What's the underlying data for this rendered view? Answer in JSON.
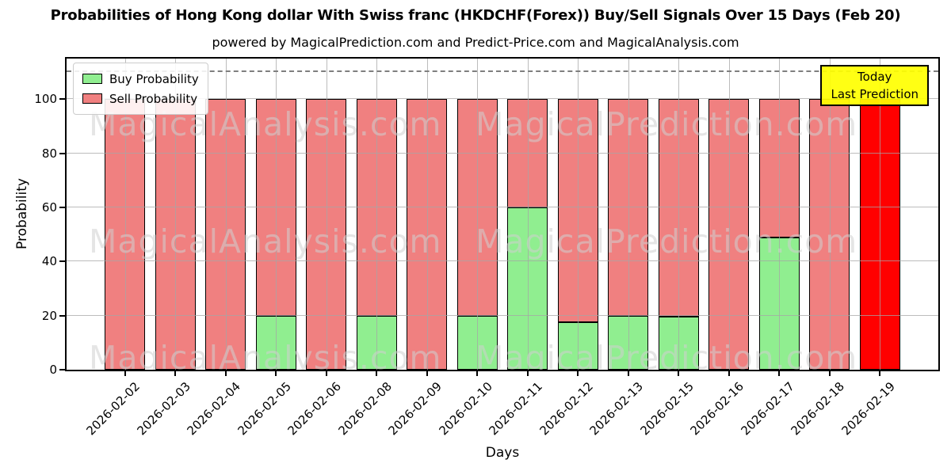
{
  "chart": {
    "title": "Probabilities of Hong Kong dollar With Swiss franc (HKDCHF(Forex)) Buy/Sell Signals Over 15 Days (Feb 20)",
    "subtitle": "powered by MagicalPrediction.com and Predict-Price.com and MagicalAnalysis.com",
    "today_box": {
      "line1": "Today",
      "line2": "Last Prediction",
      "bg_color": "#FFFF00"
    },
    "watermarks": {
      "left": "MagicalAnalysis.com",
      "right": "MagicalPrediction.com"
    }
  },
  "chart_data": {
    "type": "bar",
    "stacked": true,
    "title": "Probabilities of Hong Kong dollar With Swiss franc (HKDCHF(Forex)) Buy/Sell Signals Over 15 Days (Feb 20)",
    "xlabel": "Days",
    "ylabel": "Probability",
    "categories": [
      "2026-02-02",
      "2026-02-03",
      "2026-02-04",
      "2026-02-05",
      "2026-02-06",
      "2026-02-08",
      "2026-02-09",
      "2026-02-10",
      "2026-02-11",
      "2026-02-12",
      "2026-02-13",
      "2026-02-15",
      "2026-02-16",
      "2026-02-17",
      "2026-02-18",
      "2026-02-19"
    ],
    "series": [
      {
        "name": "Buy Probability",
        "color": "#90EE90",
        "values": [
          0,
          0,
          0,
          20,
          0,
          20,
          0,
          20,
          60,
          17.5,
          20,
          19.5,
          0,
          49,
          0,
          0
        ]
      },
      {
        "name": "Sell Probability",
        "color": "#F08080",
        "values": [
          100,
          100,
          100,
          80,
          100,
          80,
          100,
          80,
          40,
          82.5,
          80,
          80.5,
          100,
          51,
          100,
          100
        ]
      }
    ],
    "today_bar": {
      "index": 15,
      "sell_color": "#FF0000"
    },
    "yticks": [
      0,
      20,
      40,
      60,
      80,
      100
    ],
    "ylim": [
      0,
      115
    ],
    "dashed_line_y": 110,
    "grid": true,
    "legend_position": "upper left"
  }
}
